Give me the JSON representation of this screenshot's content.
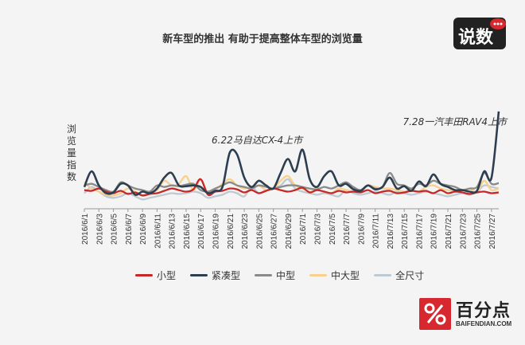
{
  "title": "新车型的推出 有助于提高整体车型的浏览量",
  "ylabel": "浏览量指数",
  "brand_top": "说数",
  "brand_top_url": "",
  "brand_bottom": {
    "name": "百分点",
    "url": "BAIFENDIAN.COM"
  },
  "chart_data": {
    "type": "line",
    "xlabel": "",
    "ylabel": "浏览量指数",
    "grid": false,
    "legend": "bottom",
    "x": [
      "2016/6/1",
      "2016/6/2",
      "2016/6/3",
      "2016/6/4",
      "2016/6/5",
      "2016/6/6",
      "2016/6/7",
      "2016/6/8",
      "2016/6/9",
      "2016/6/10",
      "2016/6/11",
      "2016/6/12",
      "2016/6/13",
      "2016/6/14",
      "2016/6/15",
      "2016/6/16",
      "2016/6/17",
      "2016/6/18",
      "2016/6/19",
      "2016/6/20",
      "2016/6/21",
      "2016/6/22",
      "2016/6/23",
      "2016/6/24",
      "2016/6/25",
      "2016/6/26",
      "2016/6/27",
      "2016/6/28",
      "2016/6/29",
      "2016/6/30",
      "2016/7/1",
      "2016/7/2",
      "2016/7/3",
      "2016/7/4",
      "2016/7/5",
      "2016/7/6",
      "2016/7/7",
      "2016/7/8",
      "2016/7/9",
      "2016/7/10",
      "2016/7/11",
      "2016/7/12",
      "2016/7/13",
      "2016/7/14",
      "2016/7/15",
      "2016/7/16",
      "2016/7/17",
      "2016/7/18",
      "2016/7/19",
      "2016/7/20",
      "2016/7/21",
      "2016/7/22",
      "2016/7/23",
      "2016/7/24",
      "2016/7/25",
      "2016/7/26",
      "2016/7/27",
      "2016/7/28"
    ],
    "tick_labels": [
      "2016/6/1",
      "2016/6/3",
      "2016/6/5",
      "2016/6/7",
      "2016/6/9",
      "2016/6/11",
      "2016/6/13",
      "2016/6/15",
      "2016/6/17",
      "2016/6/19",
      "2016/6/21",
      "2016/6/23",
      "2016/6/25",
      "2016/6/27",
      "2016/6/29",
      "2016/7/1",
      "2016/7/3",
      "2016/7/5",
      "2016/7/7",
      "2016/7/9",
      "2016/7/11",
      "2016/7/13",
      "2016/7/15",
      "2016/7/17",
      "2016/7/19",
      "2016/7/21",
      "2016/7/23",
      "2016/7/25",
      "2016/7/27"
    ],
    "ylim": [
      0,
      130
    ],
    "series": [
      {
        "name": "小型",
        "color": "#c62828",
        "values": [
          24,
          23,
          26,
          22,
          20,
          23,
          19,
          21,
          17,
          19,
          20,
          23,
          26,
          24,
          22,
          25,
          38,
          18,
          22,
          23,
          26,
          25,
          21,
          24,
          20,
          23,
          26,
          24,
          22,
          24,
          27,
          21,
          24,
          22,
          20,
          23,
          21,
          22,
          21,
          24,
          20,
          22,
          23,
          20,
          21,
          23,
          22,
          23,
          20,
          24,
          20,
          22,
          21,
          19,
          21,
          22,
          20,
          21
        ]
      },
      {
        "name": "紧凑型",
        "color": "#2c3e50",
        "values": [
          28,
          48,
          30,
          20,
          21,
          32,
          30,
          18,
          22,
          20,
          26,
          40,
          46,
          30,
          29,
          30,
          28,
          20,
          23,
          28,
          72,
          70,
          40,
          28,
          36,
          30,
          26,
          46,
          64,
          48,
          76,
          38,
          28,
          42,
          48,
          30,
          32,
          25,
          23,
          30,
          25,
          28,
          40,
          26,
          29,
          23,
          35,
          29,
          44,
          32,
          28,
          24,
          24,
          22,
          23,
          48,
          40,
          125
        ]
      },
      {
        "name": "中型",
        "color": "#8a8a8a",
        "values": [
          30,
          32,
          28,
          24,
          22,
          34,
          30,
          26,
          24,
          22,
          30,
          28,
          30,
          29,
          31,
          32,
          24,
          22,
          26,
          30,
          34,
          30,
          28,
          26,
          30,
          28,
          26,
          28,
          30,
          30,
          28,
          26,
          25,
          28,
          26,
          30,
          34,
          28,
          24,
          30,
          26,
          28,
          46,
          32,
          30,
          26,
          32,
          30,
          36,
          32,
          30,
          28,
          24,
          26,
          28,
          46,
          32,
          33
        ]
      },
      {
        "name": "中大型",
        "color": "#f6d08c",
        "values": [
          34,
          26,
          22,
          18,
          17,
          20,
          26,
          22,
          18,
          20,
          24,
          36,
          30,
          32,
          42,
          24,
          38,
          20,
          24,
          32,
          38,
          30,
          26,
          28,
          30,
          24,
          26,
          36,
          42,
          30,
          26,
          22,
          24,
          22,
          20,
          26,
          24,
          22,
          22,
          30,
          28,
          26,
          26,
          24,
          22,
          24,
          22,
          28,
          30,
          26,
          24,
          22,
          24,
          26,
          22,
          36,
          24,
          26
        ]
      },
      {
        "name": "全尺寸",
        "color": "#bfc9d1",
        "values": [
          20,
          28,
          22,
          16,
          14,
          16,
          20,
          16,
          12,
          14,
          16,
          18,
          20,
          19,
          20,
          22,
          20,
          14,
          16,
          18,
          22,
          20,
          16,
          28,
          20,
          24,
          26,
          30,
          38,
          26,
          22,
          20,
          18,
          20,
          18,
          16,
          24,
          20,
          18,
          20,
          22,
          20,
          18,
          22,
          20,
          18,
          20,
          22,
          20,
          18,
          16,
          18,
          20,
          18,
          22,
          30,
          28,
          26
        ]
      }
    ],
    "annotations": [
      {
        "text": "6.22马自达CX-4上市",
        "x": "2016/6/22"
      },
      {
        "text": "7.28一汽丰田RAV4上市",
        "x": "2016/7/28"
      }
    ]
  }
}
